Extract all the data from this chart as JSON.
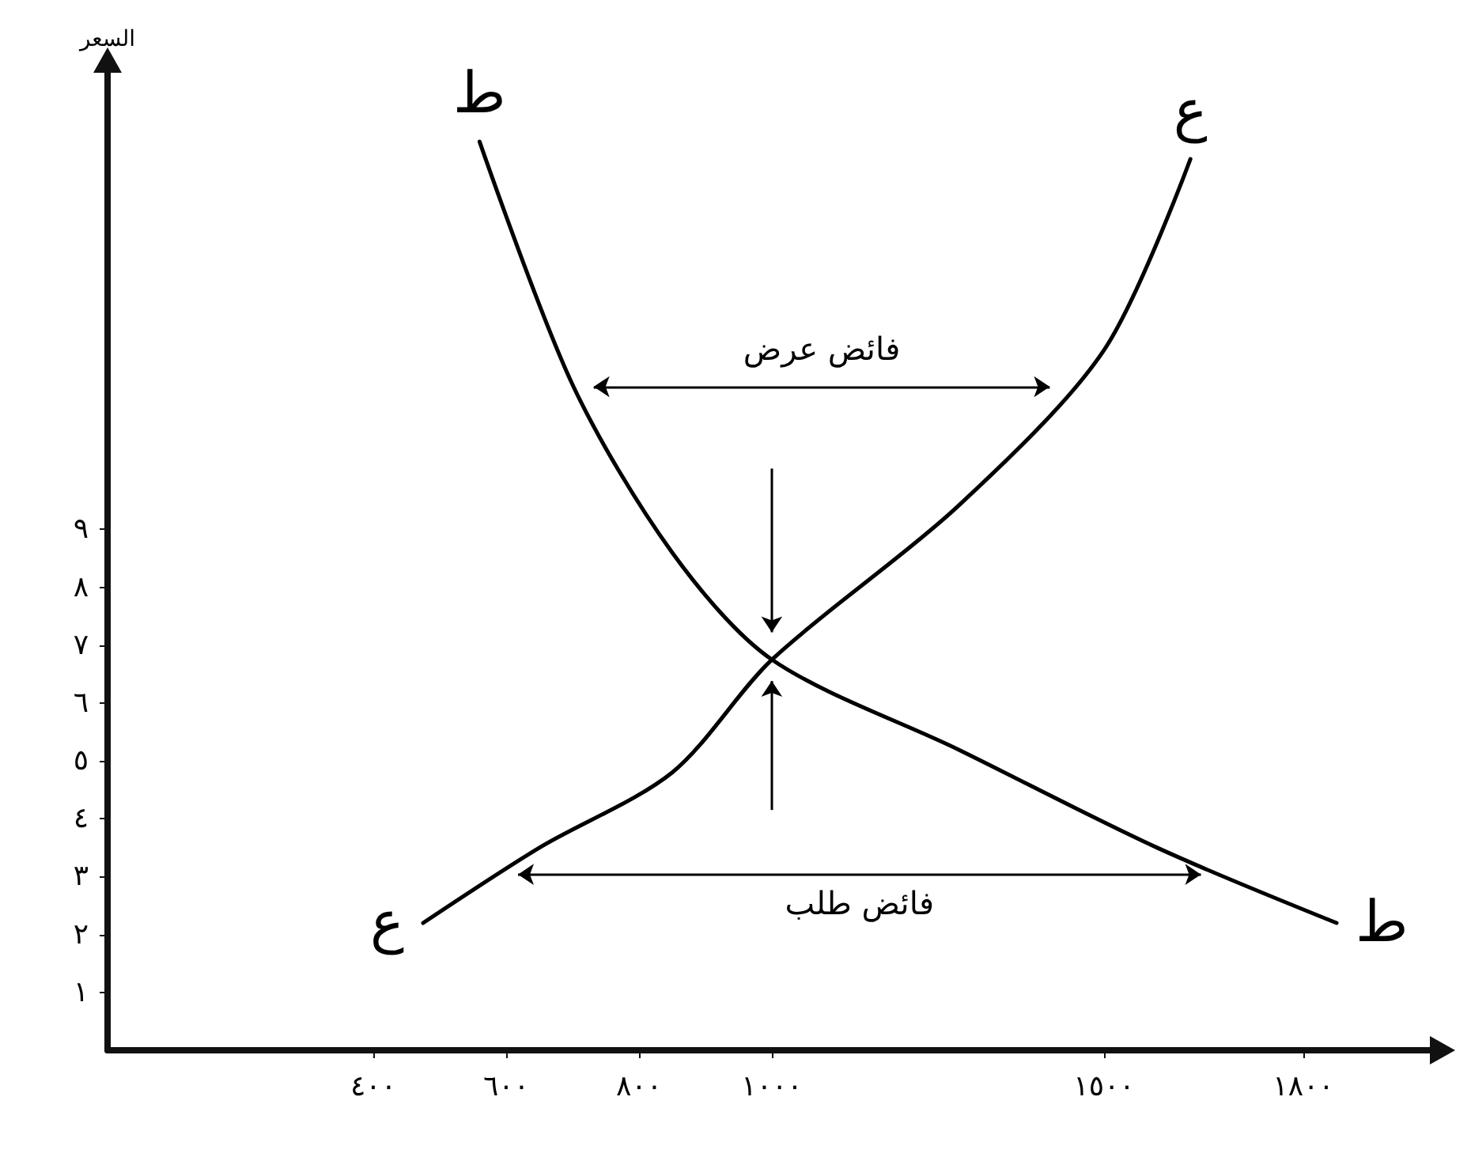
{
  "chart_data": {
    "type": "line",
    "ylabel": "السعر",
    "xlim": [
      0,
      2000
    ],
    "ylim": [
      0,
      17
    ],
    "xticks": [
      {
        "value": 400,
        "label": "٤٠٠"
      },
      {
        "value": 600,
        "label": "٦٠٠"
      },
      {
        "value": 800,
        "label": "٨٠٠"
      },
      {
        "value": 1000,
        "label": "١٠٠٠"
      },
      {
        "value": 1500,
        "label": "١٥٠٠"
      },
      {
        "value": 1800,
        "label": "١٨٠٠"
      }
    ],
    "yticks": [
      {
        "value": 1,
        "label": "١"
      },
      {
        "value": 2,
        "label": "٢"
      },
      {
        "value": 3,
        "label": "٣"
      },
      {
        "value": 4,
        "label": "٤"
      },
      {
        "value": 5,
        "label": "٥"
      },
      {
        "value": 6,
        "label": "٦"
      },
      {
        "value": 7,
        "label": "٧"
      },
      {
        "value": 8,
        "label": "٨"
      },
      {
        "value": 9,
        "label": "٩"
      }
    ],
    "series": [
      {
        "name": "ط",
        "color": "#000000",
        "x": [
          560,
          700,
          850,
          1000,
          1280,
          1580,
          1850
        ],
        "values": [
          15.7,
          11.5,
          8.6,
          6.75,
          5.2,
          3.5,
          2.2
        ]
      },
      {
        "name": "ع",
        "color": "#000000",
        "x": [
          475,
          650,
          850,
          1000,
          1280,
          1500,
          1630
        ],
        "values": [
          2.2,
          3.5,
          4.8,
          6.75,
          9.4,
          12.1,
          15.4
        ]
      }
    ],
    "annotations": [
      "فائض عرض",
      "فائض طلب"
    ],
    "grid": false,
    "legend": false,
    "marker": "none",
    "line_style": "solid"
  }
}
